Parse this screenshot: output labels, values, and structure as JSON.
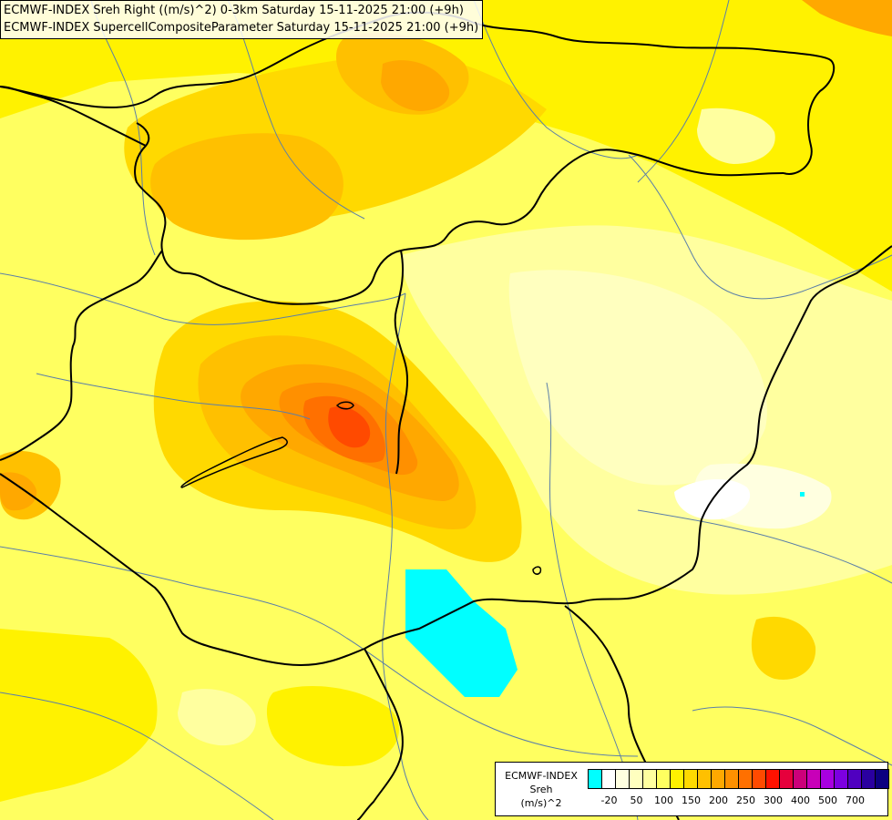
{
  "header": {
    "line1": "ECMWF-INDEX Sreh Right ((m/s)^2) 0-3km Saturday 15-11-2025 21:00 (+9h)",
    "line2": "ECMWF-INDEX SupercellCompositeParameter Saturday 15-11-2025 21:00 (+9h)"
  },
  "legend": {
    "line1": "ECMWF-INDEX",
    "line2": "Sreh",
    "line3": "(m/s)^2",
    "swatch_colors": [
      "#00ffff",
      "#ffffff",
      "#ffffe0",
      "#ffffbf",
      "#ffff9f",
      "#ffff60",
      "#fff200",
      "#ffd900",
      "#ffc000",
      "#ffa800",
      "#ff9000",
      "#ff7000",
      "#ff4a00",
      "#ff1200",
      "#e6003c",
      "#cc007a",
      "#c800b8",
      "#a800e0",
      "#7c00e0",
      "#5000c0",
      "#2a00a0",
      "#0c0080"
    ],
    "ticks": [
      "-20",
      "50",
      "100",
      "150",
      "200",
      "250",
      "300",
      "400",
      "500",
      "700"
    ]
  },
  "colors": {
    "background_yellow": "#ffff60",
    "border_line": "#000000",
    "river_line": "#5b7fa8",
    "low_sreh_cyan": "#00ffff"
  }
}
